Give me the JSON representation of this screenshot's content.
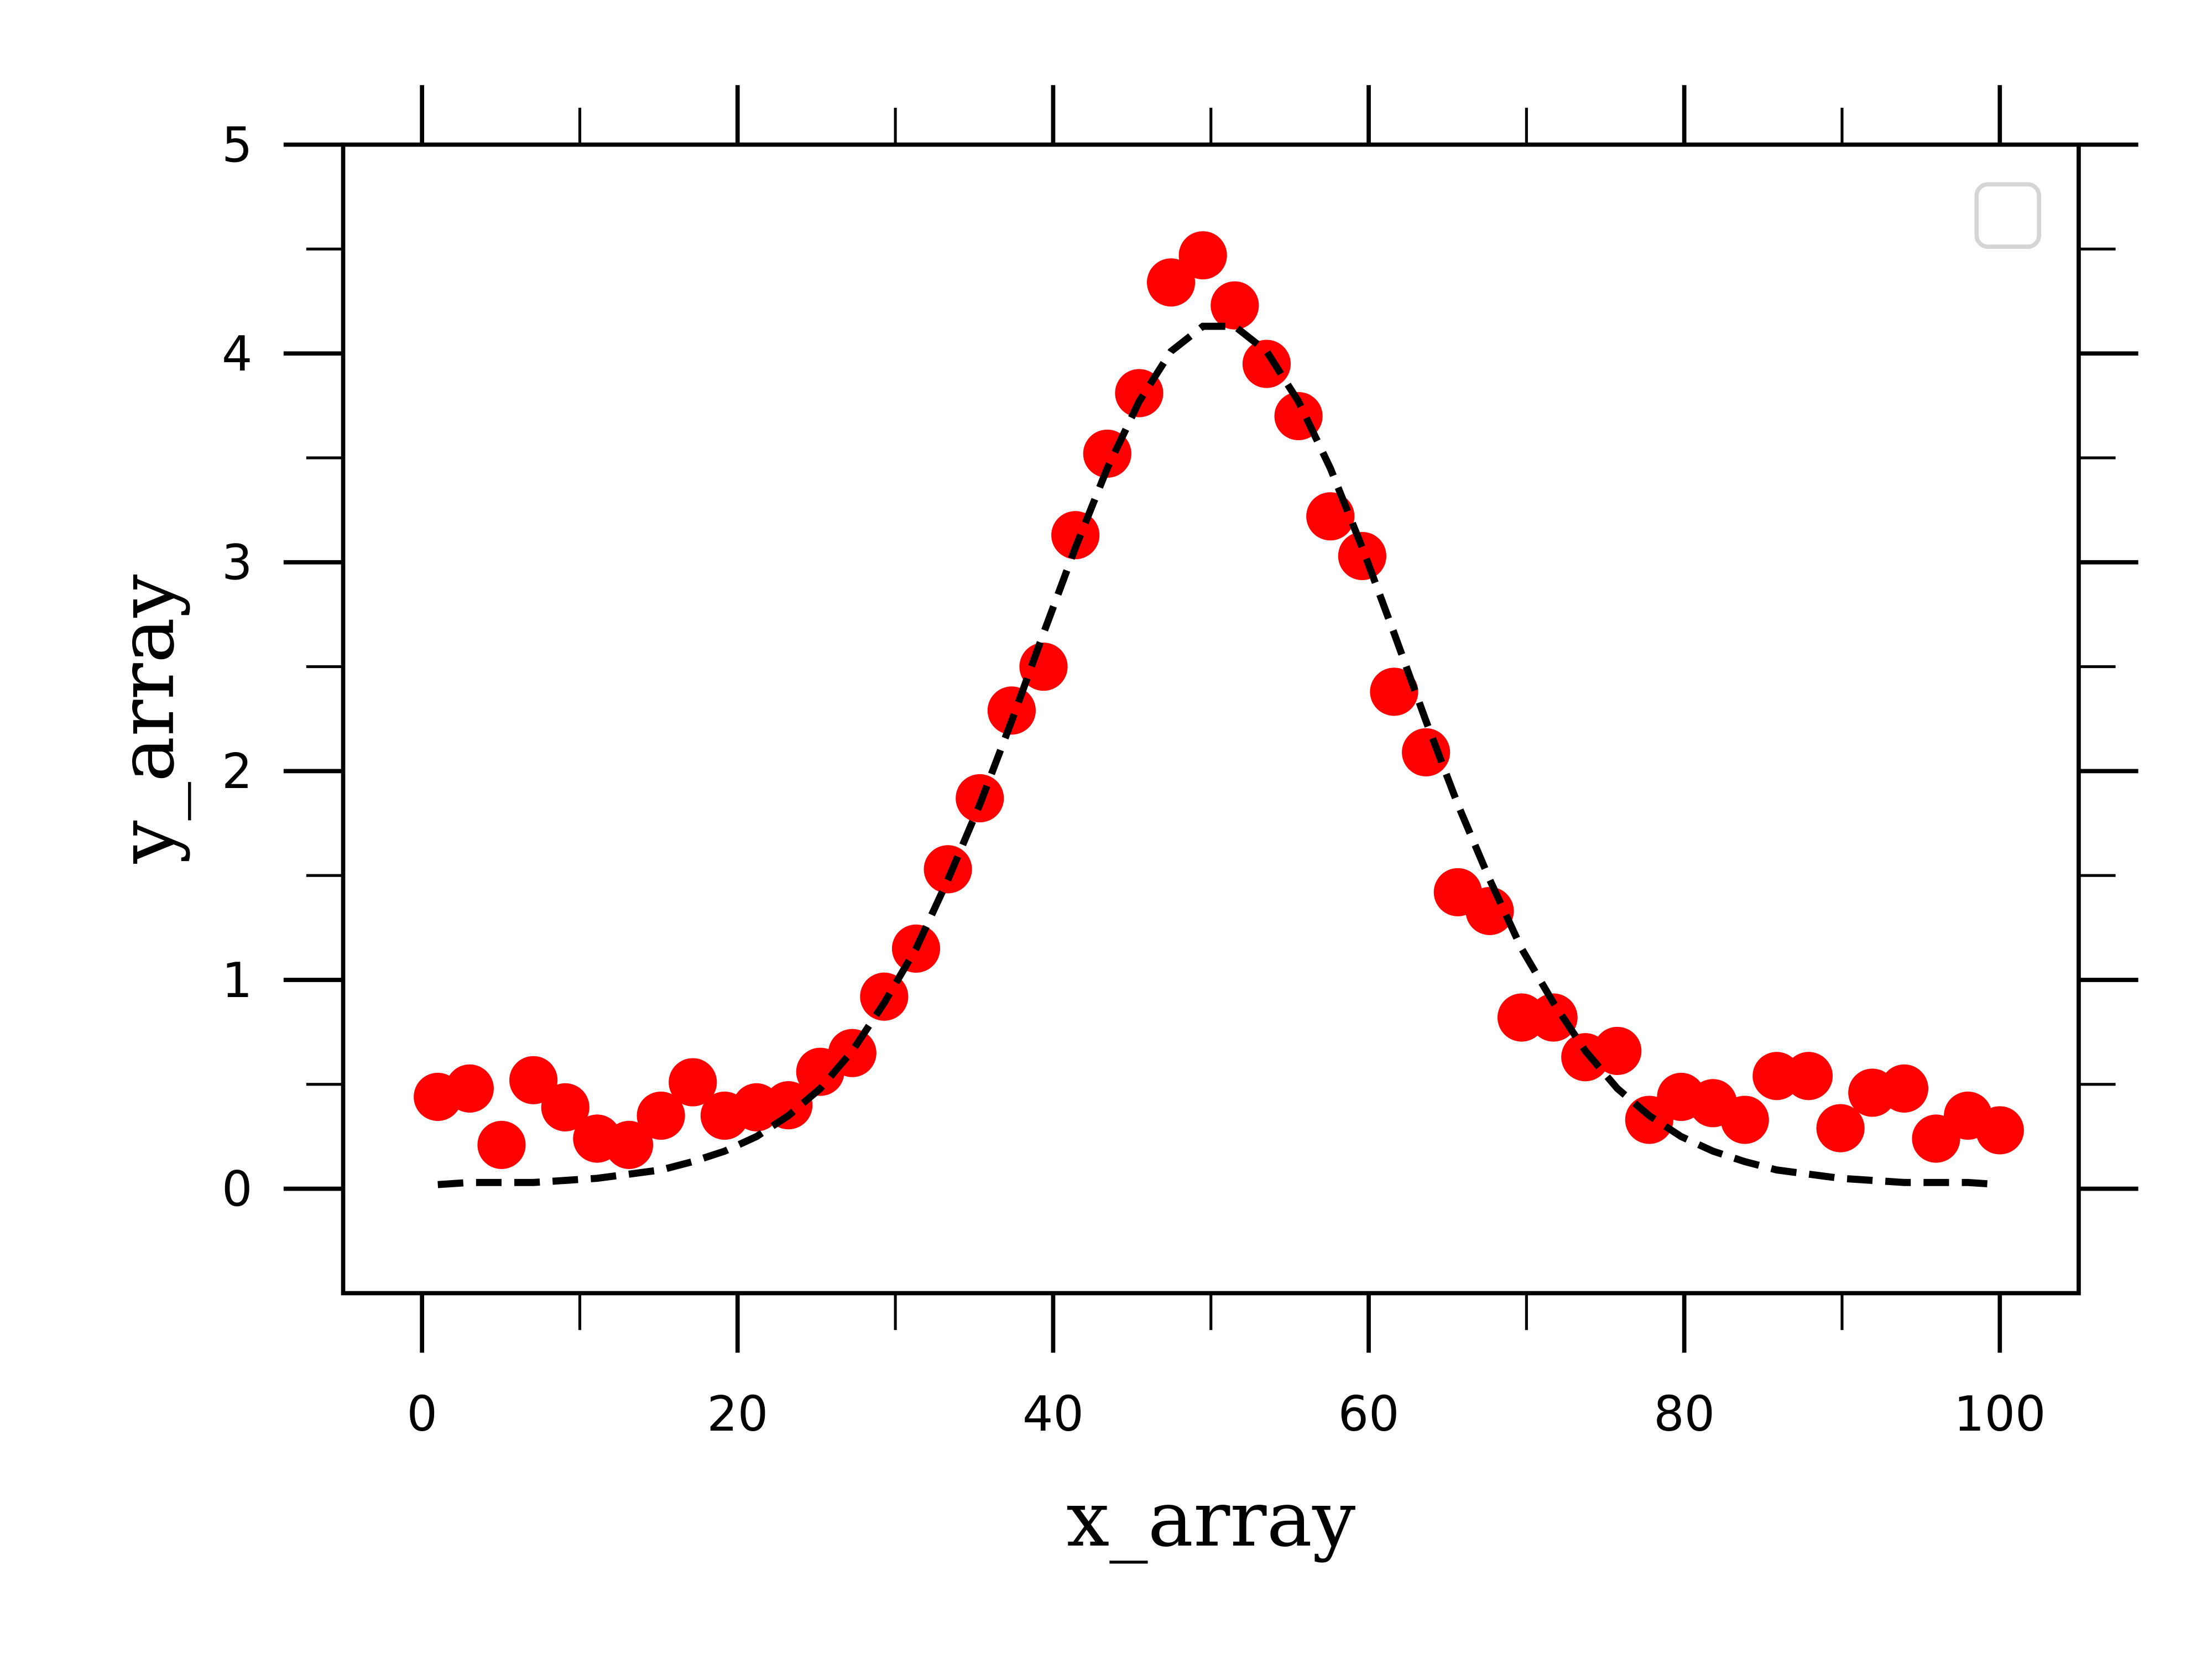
{
  "chart_data": {
    "type": "scatter",
    "x_label": "x_array",
    "y_label": "y_array",
    "x": [
      1,
      3.02,
      5.04,
      7.06,
      9.08,
      11.1,
      13.12,
      15.14,
      17.16,
      19.18,
      21.2,
      23.22,
      25.24,
      27.27,
      29.29,
      31.31,
      33.33,
      35.35,
      37.37,
      39.39,
      41.41,
      43.43,
      45.45,
      47.47,
      49.49,
      51.51,
      53.53,
      55.55,
      57.57,
      59.59,
      61.61,
      63.63,
      65.65,
      67.67,
      69.69,
      71.71,
      73.73,
      75.76,
      77.78,
      79.8,
      81.82,
      83.84,
      85.86,
      87.88,
      89.9,
      91.92,
      93.94,
      95.96,
      97.98,
      100
    ],
    "series": [
      {
        "color": "#ff0000",
        "marker": "circle",
        "values": [
          0.44,
          0.48,
          0.21,
          0.52,
          0.39,
          0.24,
          0.21,
          0.35,
          0.51,
          0.35,
          0.39,
          0.4,
          0.56,
          0.65,
          0.92,
          1.15,
          1.53,
          1.87,
          2.29,
          2.5,
          3.13,
          3.52,
          3.81,
          4.34,
          4.47,
          4.23,
          3.95,
          3.7,
          3.22,
          3.03,
          2.38,
          2.09,
          1.42,
          1.33,
          0.82,
          0.82,
          0.63,
          0.66,
          0.33,
          0.44,
          0.41,
          0.33,
          0.54,
          0.54,
          0.29,
          0.46,
          0.48,
          0.24,
          0.35,
          0.28
        ]
      },
      {
        "color": "#000000",
        "linestyle": "dashed",
        "values": [
          0.02,
          0.03,
          0.03,
          0.03,
          0.04,
          0.05,
          0.07,
          0.09,
          0.13,
          0.18,
          0.25,
          0.35,
          0.48,
          0.66,
          0.89,
          1.15,
          1.48,
          1.84,
          2.24,
          2.66,
          3.07,
          3.45,
          3.77,
          4.01,
          4.13,
          4.13,
          4.01,
          3.77,
          3.45,
          3.07,
          2.66,
          2.24,
          1.84,
          1.48,
          1.15,
          0.89,
          0.66,
          0.48,
          0.35,
          0.25,
          0.18,
          0.13,
          0.09,
          0.07,
          0.05,
          0.04,
          0.03,
          0.03,
          0.03,
          0.02
        ]
      }
    ],
    "xlim": [
      -5,
      105
    ],
    "ylim": [
      -0.5,
      5
    ],
    "xticks": [
      0,
      20,
      40,
      60,
      80,
      100
    ],
    "yticks": [
      0,
      1,
      2,
      3,
      4,
      5
    ],
    "xminorticks": [
      10,
      30,
      50,
      70,
      90
    ],
    "yminorticks": [
      0.5,
      1.5,
      2.5,
      3.5,
      4.5
    ],
    "legend": "upper right"
  }
}
